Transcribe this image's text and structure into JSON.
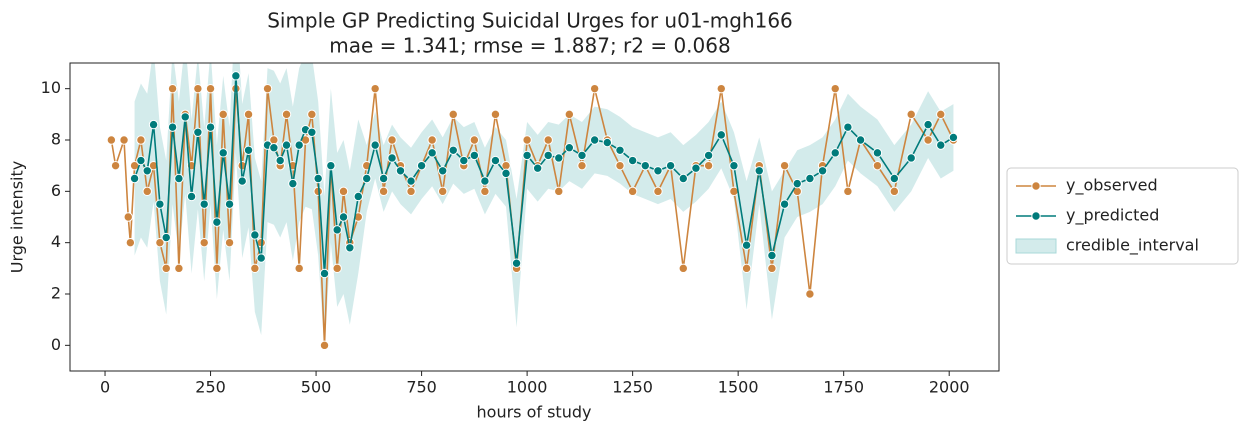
{
  "chart_data": {
    "type": "line",
    "title": "Simple GP Predicting Suicidal Urges for u01-mgh166",
    "subtitle": "mae = 1.341; rmse = 1.887; r2 = 0.068",
    "x_label": "hours of study",
    "y_label": "Urge intensity",
    "xlim": [
      -83,
      2118
    ],
    "ylim": [
      -1,
      11
    ],
    "xticks": [
      0,
      250,
      500,
      750,
      1000,
      1250,
      1500,
      1750,
      2000
    ],
    "yticks": [
      0,
      2,
      4,
      6,
      8,
      10
    ],
    "legend": "outside-right",
    "x": [
      15,
      25,
      45,
      55,
      60,
      70,
      85,
      100,
      115,
      130,
      145,
      160,
      175,
      190,
      205,
      220,
      235,
      250,
      265,
      280,
      295,
      310,
      325,
      340,
      355,
      370,
      385,
      400,
      415,
      430,
      445,
      460,
      475,
      490,
      505,
      520,
      535,
      550,
      565,
      580,
      600,
      620,
      640,
      660,
      680,
      700,
      725,
      750,
      775,
      800,
      825,
      850,
      875,
      900,
      925,
      950,
      975,
      1000,
      1025,
      1050,
      1075,
      1100,
      1130,
      1160,
      1190,
      1220,
      1250,
      1280,
      1310,
      1340,
      1370,
      1400,
      1430,
      1460,
      1490,
      1520,
      1550,
      1580,
      1610,
      1640,
      1670,
      1700,
      1730,
      1760,
      1790,
      1830,
      1870,
      1910,
      1950,
      1980,
      2010
    ],
    "series": [
      {
        "name": "y_observed",
        "color": "#cd853f",
        "values": [
          8,
          7,
          8,
          5,
          4,
          7,
          8,
          6,
          7,
          4,
          3,
          10,
          3,
          9,
          7,
          10,
          4,
          10,
          3,
          9,
          4,
          10,
          7,
          9,
          3,
          4,
          10,
          8,
          7,
          9,
          7,
          3,
          8,
          9,
          6,
          0,
          7,
          3,
          6,
          4,
          5,
          7,
          10,
          6,
          8,
          7,
          6,
          7,
          8,
          6,
          9,
          7,
          8,
          6,
          9,
          7,
          3,
          8,
          7,
          8,
          6,
          9,
          7,
          10,
          8,
          7,
          6,
          7,
          6,
          7,
          3,
          7,
          7,
          10,
          6,
          3,
          7,
          3,
          7,
          6,
          2,
          7,
          10,
          6,
          8,
          7,
          6,
          9,
          8,
          9,
          8
        ]
      },
      {
        "name": "y_predicted",
        "color": "#007b7b",
        "values": [
          null,
          null,
          null,
          null,
          null,
          6.5,
          7.2,
          6.8,
          8.6,
          5.5,
          4.2,
          8.5,
          6.5,
          8.9,
          5.8,
          8.3,
          5.5,
          8.5,
          4.8,
          7.5,
          5.5,
          10.5,
          6.4,
          7.6,
          4.3,
          3.4,
          7.8,
          7.7,
          7.2,
          7.8,
          6.3,
          7.8,
          8.4,
          8.3,
          6.5,
          2.8,
          7.0,
          4.5,
          5.0,
          3.8,
          5.8,
          6.5,
          7.8,
          6.5,
          7.3,
          6.8,
          6.4,
          7.0,
          7.5,
          6.8,
          7.6,
          7.2,
          7.4,
          6.4,
          7.2,
          6.7,
          3.2,
          7.4,
          6.9,
          7.4,
          7.3,
          7.7,
          7.4,
          8.0,
          7.9,
          7.6,
          7.2,
          7.0,
          6.8,
          7.0,
          6.5,
          6.9,
          7.4,
          8.2,
          7.0,
          3.9,
          6.8,
          3.5,
          5.5,
          6.3,
          6.5,
          6.8,
          7.5,
          8.5,
          8.0,
          7.5,
          6.5,
          7.3,
          8.6,
          7.8,
          8.1
        ]
      },
      {
        "name": "credible_interval",
        "color": "#a8d8d8",
        "lower": [
          null,
          null,
          null,
          null,
          null,
          3.5,
          4.2,
          3.8,
          5.6,
          2.5,
          1.2,
          5.5,
          3.5,
          5.9,
          2.8,
          5.3,
          2.5,
          5.5,
          1.8,
          4.5,
          2.5,
          7.5,
          3.4,
          4.6,
          1.3,
          0.4,
          4.8,
          4.7,
          4.2,
          4.8,
          3.3,
          4.8,
          5.4,
          5.3,
          3.5,
          -0.2,
          4.0,
          1.5,
          2.0,
          0.8,
          2.8,
          5.2,
          6.5,
          5.2,
          6.0,
          5.5,
          5.1,
          5.7,
          6.2,
          5.5,
          6.3,
          5.9,
          6.1,
          5.1,
          5.9,
          5.4,
          0.7,
          6.1,
          5.6,
          6.1,
          6.0,
          6.4,
          6.1,
          6.7,
          6.6,
          6.3,
          5.9,
          5.7,
          5.5,
          5.7,
          5.2,
          5.6,
          6.1,
          6.9,
          5.7,
          1.4,
          5.5,
          1.0,
          4.2,
          5.0,
          5.2,
          5.5,
          6.2,
          7.2,
          6.7,
          6.2,
          5.2,
          6.0,
          7.3,
          6.5,
          6.8
        ],
        "upper": [
          null,
          null,
          null,
          null,
          null,
          9.5,
          10.2,
          9.8,
          11.6,
          8.5,
          7.2,
          11.5,
          9.5,
          11.9,
          8.8,
          11.3,
          8.5,
          11.5,
          7.8,
          10.5,
          8.5,
          13.5,
          9.4,
          10.6,
          7.3,
          6.4,
          10.8,
          10.7,
          10.2,
          10.8,
          9.3,
          10.8,
          11.4,
          11.3,
          9.5,
          5.8,
          10.0,
          7.5,
          8.0,
          6.8,
          8.8,
          7.8,
          9.1,
          7.8,
          8.6,
          8.1,
          7.7,
          8.3,
          8.8,
          8.1,
          8.9,
          8.5,
          8.7,
          7.7,
          8.5,
          8.0,
          5.7,
          8.7,
          8.2,
          8.7,
          8.6,
          9.0,
          8.7,
          9.3,
          9.2,
          8.9,
          8.5,
          8.3,
          8.1,
          8.3,
          7.8,
          8.2,
          8.7,
          9.5,
          8.3,
          6.4,
          8.1,
          6.0,
          6.8,
          7.6,
          7.8,
          8.1,
          8.8,
          9.8,
          9.3,
          8.8,
          7.8,
          8.6,
          9.9,
          9.1,
          9.4
        ]
      }
    ]
  }
}
